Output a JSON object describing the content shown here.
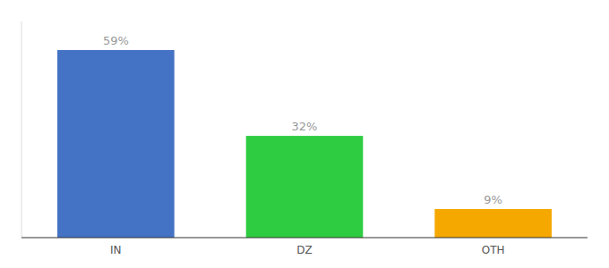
{
  "chart_data": {
    "type": "bar",
    "categories": [
      "IN",
      "DZ",
      "OTH"
    ],
    "values": [
      59,
      32,
      9
    ],
    "value_labels": [
      "59%",
      "32%",
      "9%"
    ],
    "colors": [
      "#4472c4",
      "#2ecc40",
      "#f5a800"
    ],
    "ylim": [
      0,
      68
    ],
    "data_labels": true,
    "tick_labels": "x"
  }
}
